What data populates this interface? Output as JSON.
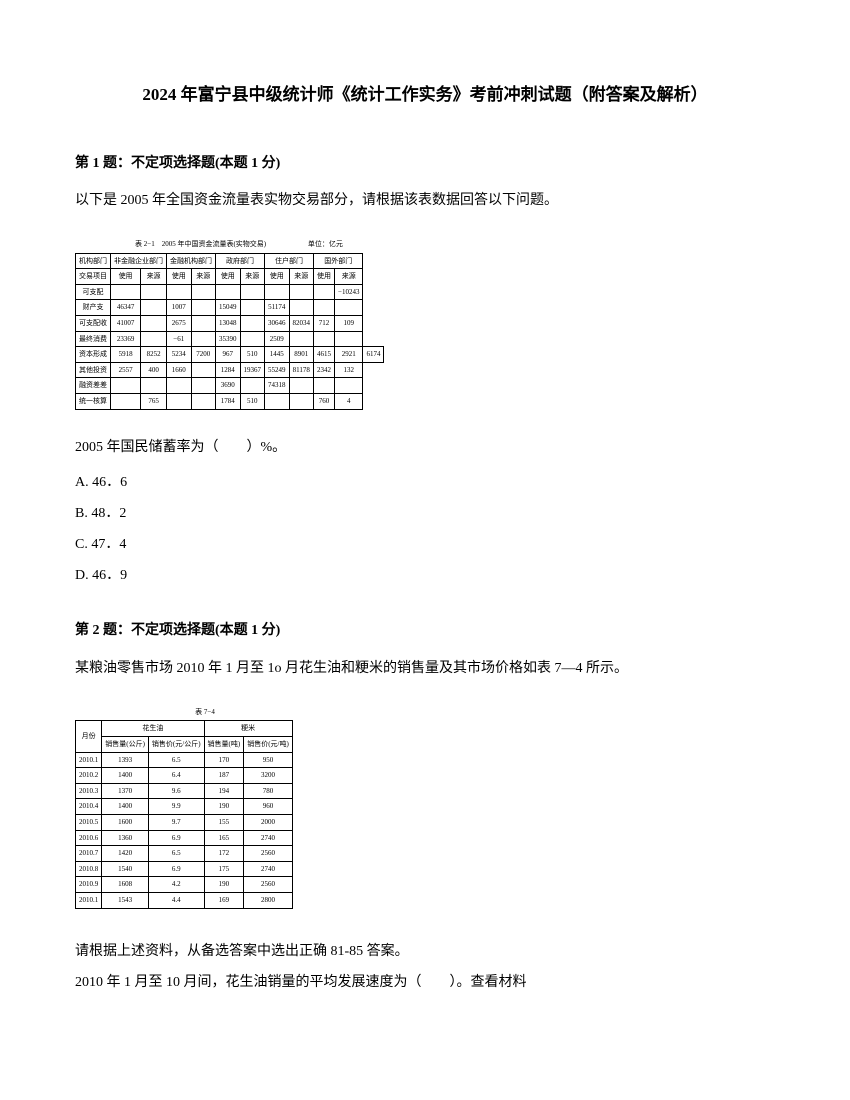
{
  "title": "2024 年富宁县中级统计师《统计工作实务》考前冲刺试题（附答案及解析）",
  "q1": {
    "header": "第 1 题：不定项选择题(本题 1 分)",
    "intro": "以下是 2005 年全国资金流量表实物交易部分，请根据该表数据回答以下问题。",
    "table_title": "表 2−1　2005 年中国资金流量表(实物交易)",
    "table_unit": "单位：亿元",
    "text": "2005 年国民储蓄率为（　　）%。",
    "options": {
      "a": "A. 46．6",
      "b": "B. 48．2",
      "c": "C. 47．4",
      "d": "D. 46．9"
    },
    "table": {
      "headers": [
        "机构部门",
        "非金融企业部门",
        "金融机构部门",
        "政府部门",
        "住户部门",
        "国外部门"
      ],
      "subheaders": [
        "交易项目",
        "使用",
        "来源",
        "使用",
        "来源",
        "使用",
        "来源",
        "使用",
        "来源",
        "使用",
        "来源"
      ],
      "rows": [
        [
          "可支配",
          "",
          "",
          "",
          "",
          "",
          "",
          "",
          "",
          "",
          "−10243"
        ],
        [
          "财产支",
          "46347",
          "",
          "1007",
          "",
          "15049",
          "",
          "51174",
          "",
          "",
          ""
        ],
        [
          "可支配收",
          "41007",
          "",
          "2675",
          "",
          "13048",
          "",
          "30646",
          "82034",
          "712",
          "109"
        ],
        [
          "最终消费",
          "23369",
          "",
          "−61",
          "",
          "35390",
          "",
          "2509",
          "",
          "",
          ""
        ],
        [
          "资本形成",
          "5918",
          "8252",
          "5234",
          "7200",
          "967",
          "510",
          "1445",
          "8901",
          "4615",
          "2921",
          "6174"
        ],
        [
          "其他投资",
          "2557",
          "400",
          "1660",
          "",
          "1284",
          "19367",
          "55249",
          "81178",
          "2342",
          "132"
        ],
        [
          "融资差差",
          "",
          "",
          "",
          "",
          "3690",
          "",
          "74318",
          "",
          "",
          ""
        ],
        [
          "统一核算",
          "",
          "765",
          "",
          "",
          "1784",
          "510",
          "",
          "",
          "760",
          "4"
        ]
      ]
    }
  },
  "q2": {
    "header": "第 2 题：不定项选择题(本题 1 分)",
    "intro": "某粮油零售市场 2010 年 1 月至 1o 月花生油和粳米的销售量及其市场价格如表 7—4 所示。",
    "table_title": "表 7−4",
    "text1": "请根据上述资料，从备选答案中选出正确 81-85 答案。",
    "text2": "2010 年 1 月至 10 月间，花生油销量的平均发展速度为（　　）。查看材料",
    "table": {
      "header1": [
        "月份",
        "花生油",
        "粳米"
      ],
      "header2": [
        "",
        "销售量(公斤)",
        "销售价(元/公斤)",
        "销售量(吨)",
        "销售价(元/吨)"
      ],
      "rows": [
        [
          "2010.1",
          "1393",
          "6.5",
          "170",
          "950"
        ],
        [
          "2010.2",
          "1400",
          "6.4",
          "187",
          "3200"
        ],
        [
          "2010.3",
          "1370",
          "9.6",
          "194",
          "780"
        ],
        [
          "2010.4",
          "1400",
          "9.9",
          "190",
          "960"
        ],
        [
          "2010.5",
          "1600",
          "9.7",
          "155",
          "2000"
        ],
        [
          "2010.6",
          "1360",
          "6.9",
          "165",
          "2740"
        ],
        [
          "2010.7",
          "1420",
          "6.5",
          "172",
          "2560"
        ],
        [
          "2010.8",
          "1540",
          "6.9",
          "175",
          "2740"
        ],
        [
          "2010.9",
          "1608",
          "4.2",
          "190",
          "2560"
        ],
        [
          "2010.1",
          "1543",
          "4.4",
          "169",
          "2800"
        ]
      ]
    }
  }
}
